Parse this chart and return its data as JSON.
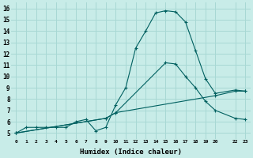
{
  "xlabel": "Humidex (Indice chaleur)",
  "bg_color": "#c8ece8",
  "grid_color": "#a8d8d4",
  "line_color": "#006060",
  "xlim": [
    -0.5,
    23.5
  ],
  "ylim": [
    4.5,
    16.5
  ],
  "yticks": [
    5,
    6,
    7,
    8,
    9,
    10,
    11,
    12,
    13,
    14,
    15,
    16
  ],
  "xtick_positions": [
    0,
    1,
    2,
    3,
    4,
    5,
    6,
    7,
    8,
    9,
    10,
    11,
    12,
    13,
    14,
    15,
    16,
    17,
    18,
    19,
    20,
    22,
    23
  ],
  "xtick_labels": [
    "0",
    "1",
    "2",
    "3",
    "4",
    "5",
    "6",
    "7",
    "8",
    "9",
    "10",
    "11",
    "12",
    "13",
    "14",
    "15",
    "16",
    "17",
    "18",
    "19",
    "20",
    "22",
    "23"
  ],
  "line1_x": [
    0,
    1,
    2,
    3,
    4,
    5,
    6,
    7,
    8,
    9,
    10,
    11,
    12,
    13,
    14,
    15,
    16,
    17,
    18,
    19,
    20,
    22,
    23
  ],
  "line1_y": [
    5.0,
    5.5,
    5.5,
    5.5,
    5.5,
    5.5,
    6.0,
    6.2,
    5.2,
    5.5,
    7.5,
    9.0,
    12.5,
    14.0,
    15.6,
    15.8,
    15.7,
    14.8,
    12.3,
    9.8,
    8.5,
    8.8,
    8.7
  ],
  "line2_x": [
    0,
    9,
    10,
    15,
    16,
    17,
    18,
    19,
    20,
    22,
    23
  ],
  "line2_y": [
    5.0,
    6.3,
    6.8,
    11.2,
    11.1,
    10.0,
    9.0,
    7.8,
    7.0,
    6.3,
    6.2
  ],
  "line3_x": [
    0,
    9,
    10,
    20,
    22,
    23
  ],
  "line3_y": [
    5.0,
    6.3,
    6.8,
    8.3,
    8.7,
    8.7
  ]
}
